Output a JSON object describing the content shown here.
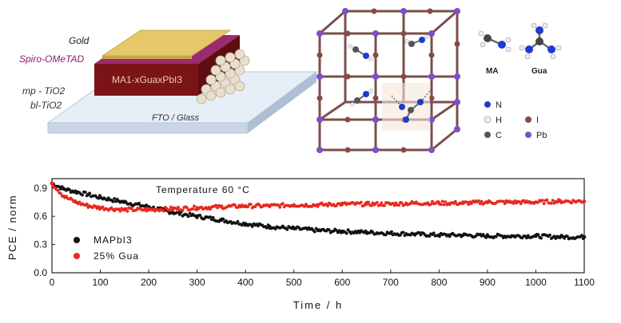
{
  "device": {
    "layers": {
      "gold": "Gold",
      "spiro": "Spiro-OMeTAD",
      "mp_tio2": "mp - TiO2",
      "bl_tio2": "bl-TiO2",
      "fto": "FTO / Glass"
    },
    "perovskite_label": "MA1-xGuaxPbI3",
    "colors": {
      "gold": "#e6c86a",
      "spiro": "#9c2a6e",
      "perovskite": "#7a1416",
      "glass": "#d6e2ef",
      "label_purple": "#8b1d6b"
    }
  },
  "structure": {
    "molecules": [
      "MA",
      "Gua"
    ],
    "legend": [
      {
        "symbol": "N",
        "color": "#1d3bd0"
      },
      {
        "symbol": "I",
        "color": "#8a4a44"
      },
      {
        "symbol": "H",
        "color": "#f0f0f0"
      },
      {
        "symbol": "Pb",
        "color": "#7b50c8"
      },
      {
        "symbol": "C",
        "color": "#555555"
      }
    ]
  },
  "chart_data": {
    "type": "scatter",
    "annotation": "Temperature 60 °C",
    "xlabel": "Time / h",
    "ylabel": "PCE / norm",
    "xlim": [
      0,
      1100
    ],
    "ylim": [
      0,
      1.0
    ],
    "x_ticks": [
      0,
      100,
      200,
      300,
      400,
      500,
      600,
      700,
      800,
      900,
      1000,
      1100
    ],
    "y_ticks": [
      "0.0",
      "0.3",
      "0.6",
      "0.9"
    ],
    "legend_position": "bottom-left",
    "series": [
      {
        "name": "MAPbI3",
        "color": "#111111",
        "x": [
          0,
          25,
          50,
          75,
          100,
          150,
          200,
          250,
          300,
          350,
          400,
          450,
          500,
          550,
          600,
          650,
          700,
          750,
          800,
          850,
          900,
          950,
          1000,
          1050,
          1100
        ],
        "y": [
          0.95,
          0.89,
          0.86,
          0.83,
          0.8,
          0.75,
          0.7,
          0.64,
          0.6,
          0.56,
          0.52,
          0.49,
          0.47,
          0.45,
          0.44,
          0.43,
          0.42,
          0.41,
          0.4,
          0.4,
          0.39,
          0.39,
          0.39,
          0.38,
          0.38
        ]
      },
      {
        "name": "25% Gua",
        "color": "#e8281e",
        "x": [
          0,
          25,
          50,
          75,
          100,
          150,
          200,
          250,
          300,
          350,
          400,
          450,
          500,
          550,
          600,
          650,
          700,
          750,
          800,
          850,
          900,
          950,
          1000,
          1050,
          1100
        ],
        "y": [
          0.95,
          0.81,
          0.75,
          0.71,
          0.69,
          0.67,
          0.67,
          0.68,
          0.69,
          0.7,
          0.71,
          0.71,
          0.72,
          0.72,
          0.73,
          0.73,
          0.73,
          0.74,
          0.74,
          0.74,
          0.75,
          0.75,
          0.75,
          0.76,
          0.76
        ]
      }
    ]
  }
}
